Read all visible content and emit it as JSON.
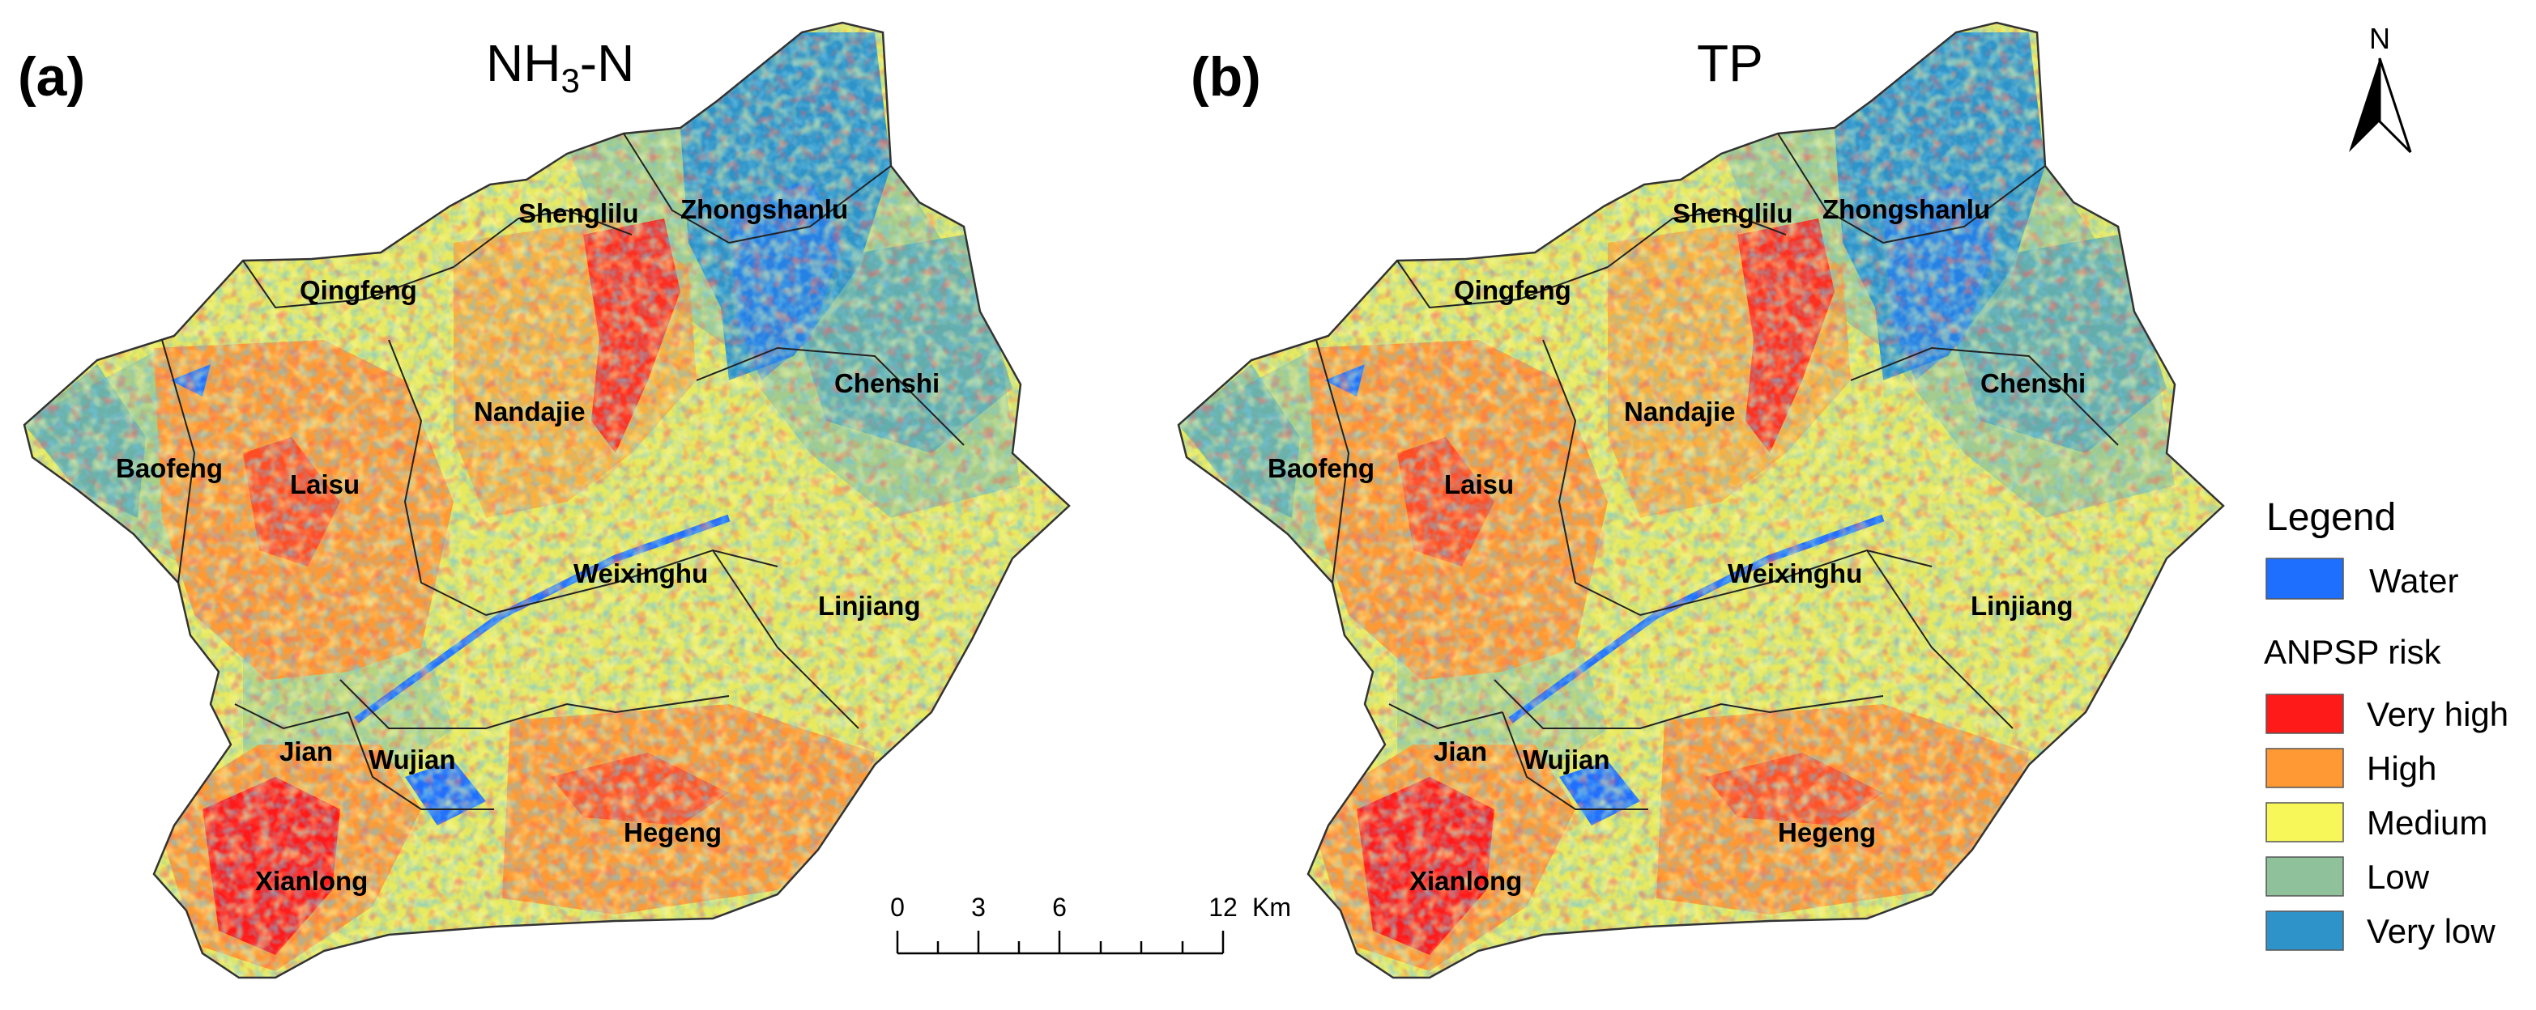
{
  "panels": [
    {
      "letter": "(a)",
      "title_main": "NH",
      "title_sub": "3",
      "title_tail": "-N",
      "towns": [
        "Shenglilu",
        "Zhongshanlu",
        "Qingfeng",
        "Chenshi",
        "Nandajie",
        "Baofeng",
        "Laisu",
        "Weixinghu",
        "Linjiang",
        "Jian",
        "Wujian",
        "Hegeng",
        "Xianlong"
      ]
    },
    {
      "letter": "(b)",
      "title_main": "TP",
      "title_sub": "",
      "title_tail": "",
      "towns": [
        "Shenglilu",
        "Zhongshanlu",
        "Qingfeng",
        "Chenshi",
        "Nandajie",
        "Baofeng",
        "Laisu",
        "Weixinghu",
        "Linjiang",
        "Jian",
        "Wujian",
        "Hegeng",
        "Xianlong"
      ]
    }
  ],
  "north_arrow": {
    "label": "N"
  },
  "scale_bar": {
    "ticks": [
      "0",
      "3",
      "6",
      "12"
    ],
    "unit": "Km"
  },
  "legend": {
    "title": "Legend",
    "water": {
      "label": "Water",
      "color": "#1f6fff"
    },
    "risk_title": "ANPSP risk",
    "classes": [
      {
        "label": "Very high",
        "color": "#ff1a1a"
      },
      {
        "label": "High",
        "color": "#ff9933"
      },
      {
        "label": "Medium",
        "color": "#f7f75a"
      },
      {
        "label": "Low",
        "color": "#8fc29a"
      },
      {
        "label": "Very low",
        "color": "#2e93c8"
      }
    ]
  }
}
